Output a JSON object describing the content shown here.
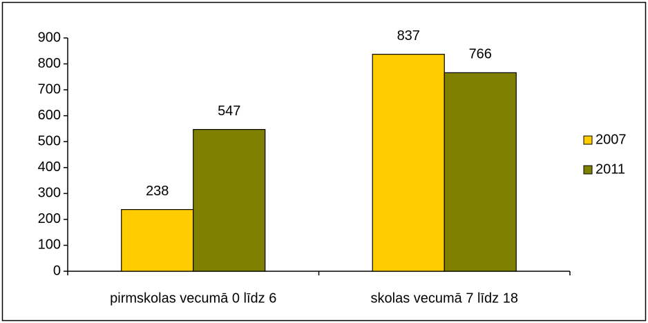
{
  "chart_data": {
    "type": "bar",
    "categories": [
      "pirmskolas vecumā 0 līdz 6",
      "skolas vecumā 7 līdz 18"
    ],
    "series": [
      {
        "name": "2007",
        "color": "#ffcc00",
        "values": [
          238,
          837
        ]
      },
      {
        "name": "2011",
        "color": "#808000",
        "values": [
          547,
          766
        ]
      }
    ],
    "ylim": [
      0,
      900
    ],
    "yticks": [
      0,
      100,
      200,
      300,
      400,
      500,
      600,
      700,
      800,
      900
    ],
    "legend": "right"
  }
}
